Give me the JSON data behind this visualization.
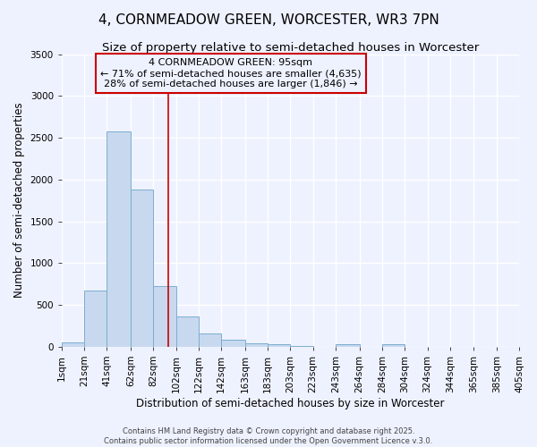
{
  "title": "4, CORNMEADOW GREEN, WORCESTER, WR3 7PN",
  "subtitle": "Size of property relative to semi-detached houses in Worcester",
  "xlabel": "Distribution of semi-detached houses by size in Worcester",
  "ylabel": "Number of semi-detached properties",
  "bin_edges": [
    1,
    21,
    41,
    62,
    82,
    102,
    122,
    142,
    163,
    183,
    203,
    223,
    243,
    264,
    284,
    304,
    324,
    344,
    365,
    385,
    405
  ],
  "bar_heights": [
    55,
    675,
    2580,
    1880,
    730,
    360,
    155,
    80,
    45,
    25,
    5,
    0,
    30,
    0,
    30,
    0,
    0,
    0,
    0,
    0
  ],
  "bar_color": "#c8d8ee",
  "bar_edge_color": "#7aaed0",
  "property_size": 95,
  "red_line_color": "#cc0000",
  "annotation_line1": "4 CORNMEADOW GREEN: 95sqm",
  "annotation_line2": "← 71% of semi-detached houses are smaller (4,635)",
  "annotation_line3": "28% of semi-detached houses are larger (1,846) →",
  "annotation_box_color": "#cc0000",
  "ylim": [
    0,
    3500
  ],
  "yticks": [
    0,
    500,
    1000,
    1500,
    2000,
    2500,
    3000,
    3500
  ],
  "tick_labels": [
    "1sqm",
    "21sqm",
    "41sqm",
    "62sqm",
    "82sqm",
    "102sqm",
    "122sqm",
    "142sqm",
    "163sqm",
    "183sqm",
    "203sqm",
    "223sqm",
    "243sqm",
    "264sqm",
    "284sqm",
    "304sqm",
    "324sqm",
    "344sqm",
    "365sqm",
    "385sqm",
    "405sqm"
  ],
  "footer_line1": "Contains HM Land Registry data © Crown copyright and database right 2025.",
  "footer_line2": "Contains public sector information licensed under the Open Government Licence v.3.0.",
  "background_color": "#eef2ff",
  "grid_color": "#ffffff",
  "title_fontsize": 11,
  "subtitle_fontsize": 9.5,
  "axis_label_fontsize": 8.5,
  "tick_fontsize": 7.5,
  "annotation_fontsize": 8,
  "footer_fontsize": 6
}
